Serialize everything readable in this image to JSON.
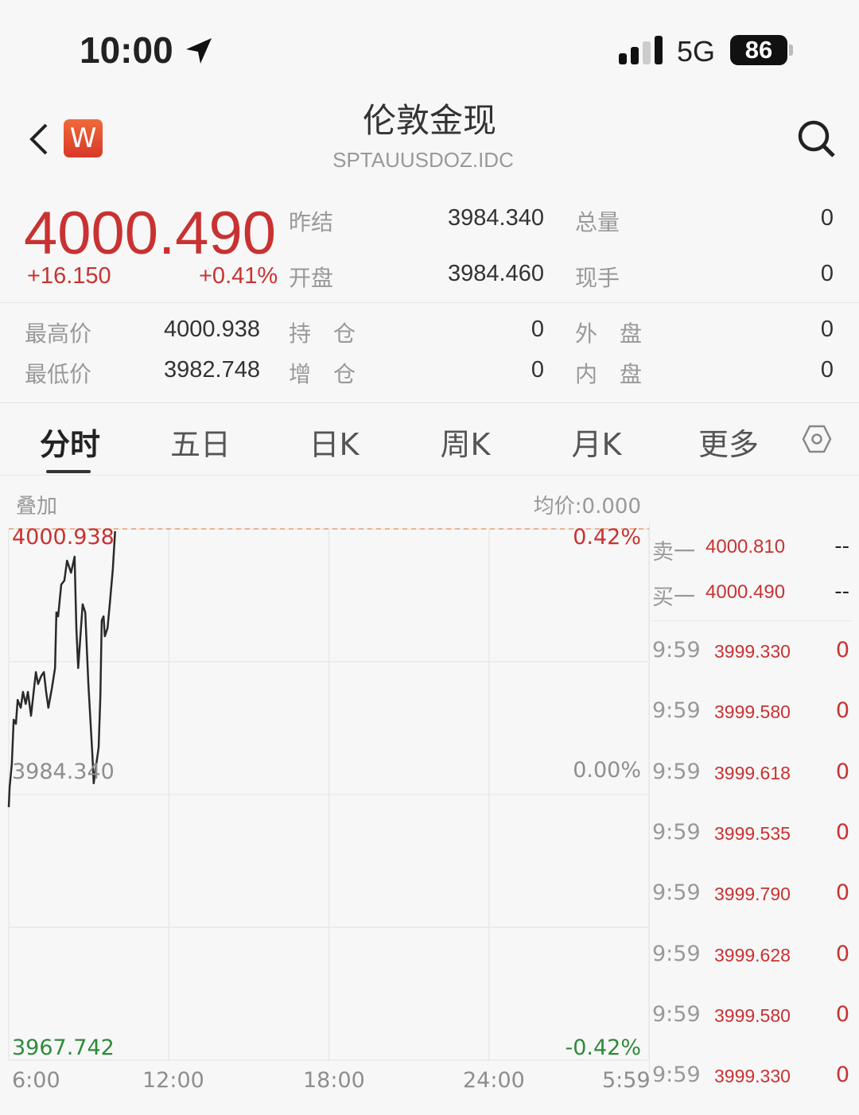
{
  "status_bar": {
    "time": "10:00",
    "network": "5G",
    "battery": "86"
  },
  "header": {
    "title": "伦敦金现",
    "code": "SPTAUUSDOZ.IDC",
    "badge": "W"
  },
  "quote": {
    "price": "4000.490",
    "change": "+16.150",
    "change_pct": "+0.41%",
    "fields": [
      {
        "label": "昨结",
        "value": "3984.340"
      },
      {
        "label": "总量",
        "value": "0"
      },
      {
        "label": "开盘",
        "value": "3984.460"
      },
      {
        "label": "现手",
        "value": "0"
      },
      {
        "label": "最高价",
        "value": "4000.938"
      },
      {
        "label": "持　仓",
        "value": "0"
      },
      {
        "label": "外　盘",
        "value": "0"
      },
      {
        "label": "最低价",
        "value": "3982.748"
      },
      {
        "label": "增　仓",
        "value": "0"
      },
      {
        "label": "内　盘",
        "value": "0"
      }
    ]
  },
  "tabs": [
    {
      "label": "分时",
      "active": true
    },
    {
      "label": "五日"
    },
    {
      "label": "日K"
    },
    {
      "label": "周K"
    },
    {
      "label": "月K"
    },
    {
      "label": "更多"
    }
  ],
  "chart_header": {
    "overlay": "叠加",
    "avg": "均价:0.000"
  },
  "chart_data": {
    "type": "line",
    "y_labels": {
      "top": "4000.938",
      "mid": "3984.340",
      "bottom": "3967.742"
    },
    "pct_labels": {
      "top": "0.42%",
      "mid": "0.00%",
      "bottom": "-0.42%"
    },
    "x_ticks": [
      "6:00",
      "12:00",
      "18:00",
      "24:00",
      "5:59"
    ],
    "ylim": [
      3967.742,
      4000.938
    ],
    "reference": 3984.34,
    "high_line": 4000.938,
    "grid": true,
    "colors": {
      "line": "#2a2a2a",
      "high": "#e8a070",
      "up": "#c93232",
      "down": "#2f8a3c"
    },
    "points": [
      [
        "6:00",
        3983.55
      ],
      [
        "6:02",
        3984.79
      ],
      [
        "6:07",
        3986.28
      ],
      [
        "6:11",
        3989.01
      ],
      [
        "6:16",
        3988.76
      ],
      [
        "6:20",
        3990.25
      ],
      [
        "6:27",
        3989.76
      ],
      [
        "6:32",
        3990.75
      ],
      [
        "6:38",
        3990.0
      ],
      [
        "6:43",
        3990.75
      ],
      [
        "6:50",
        3989.26
      ],
      [
        "6:54",
        3990.25
      ],
      [
        "7:01",
        3991.99
      ],
      [
        "7:06",
        3991.25
      ],
      [
        "7:13",
        3991.74
      ],
      [
        "7:19",
        3991.99
      ],
      [
        "7:24",
        3990.75
      ],
      [
        "7:29",
        3989.76
      ],
      [
        "7:37",
        3991.0
      ],
      [
        "7:44",
        3992.24
      ],
      [
        "7:47",
        3995.72
      ],
      [
        "7:51",
        3995.47
      ],
      [
        "7:58",
        3997.46
      ],
      [
        "8:05",
        3997.71
      ],
      [
        "8:11",
        3998.95
      ],
      [
        "8:20",
        3998.2
      ],
      [
        "8:28",
        3999.2
      ],
      [
        "8:32",
        3994.73
      ],
      [
        "8:36",
        3992.24
      ],
      [
        "8:41",
        3994.23
      ],
      [
        "8:46",
        3996.22
      ],
      [
        "8:52",
        3995.72
      ],
      [
        "8:59",
        3991.25
      ],
      [
        "9:08",
        3986.77
      ],
      [
        "9:11",
        3985.04
      ],
      [
        "9:17",
        3986.28
      ],
      [
        "9:22",
        3987.27
      ],
      [
        "9:26",
        3990.5
      ],
      [
        "9:29",
        3995.22
      ],
      [
        "9:33",
        3995.47
      ],
      [
        "9:36",
        3994.23
      ],
      [
        "9:42",
        3994.73
      ],
      [
        "9:47",
        3996.22
      ],
      [
        "9:54",
        3998.45
      ],
      [
        "9:59",
        4000.79
      ]
    ]
  },
  "order_book": [
    {
      "label": "卖一",
      "price": "4000.810",
      "vol": "--"
    },
    {
      "label": "买一",
      "price": "4000.490",
      "vol": "--"
    }
  ],
  "trades": [
    {
      "time": "9:59",
      "price": "3999.330",
      "vol": "0"
    },
    {
      "time": "9:59",
      "price": "3999.580",
      "vol": "0"
    },
    {
      "time": "9:59",
      "price": "3999.618",
      "vol": "0"
    },
    {
      "time": "9:59",
      "price": "3999.535",
      "vol": "0"
    },
    {
      "time": "9:59",
      "price": "3999.790",
      "vol": "0"
    },
    {
      "time": "9:59",
      "price": "3999.628",
      "vol": "0"
    },
    {
      "time": "9:59",
      "price": "3999.580",
      "vol": "0"
    },
    {
      "time": "9:59",
      "price": "3999.330",
      "vol": "0"
    }
  ]
}
